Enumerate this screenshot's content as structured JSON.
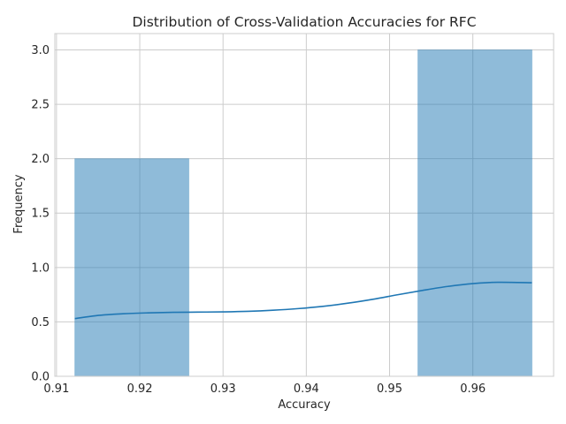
{
  "chart_data": {
    "type": "bar",
    "title": "Distribution of Cross-Validation Accuracies for RFC",
    "xlabel": "Accuracy",
    "ylabel": "Frequency",
    "xlim": [
      0.9098,
      0.9697
    ],
    "ylim": [
      0,
      3.15
    ],
    "xticks": [
      0.91,
      0.92,
      0.93,
      0.94,
      0.95,
      0.96
    ],
    "xtick_labels": [
      "0.91",
      "0.92",
      "0.93",
      "0.94",
      "0.95",
      "0.96"
    ],
    "yticks": [
      0,
      0.5,
      1.0,
      1.5,
      2.0,
      2.5,
      3.0
    ],
    "ytick_labels": [
      "0.0",
      "0.5",
      "1.0",
      "1.5",
      "2.0",
      "2.5",
      "3.0"
    ],
    "grid": true,
    "bins": [
      {
        "x0": 0.9122,
        "x1": 0.9259,
        "count": 2
      },
      {
        "x0": 0.9259,
        "x1": 0.9396,
        "count": 0
      },
      {
        "x0": 0.9396,
        "x1": 0.9534,
        "count": 0
      },
      {
        "x0": 0.9534,
        "x1": 0.9671,
        "count": 3
      }
    ],
    "kde": {
      "x": [
        0.9122,
        0.915,
        0.918,
        0.921,
        0.924,
        0.927,
        0.93,
        0.933,
        0.936,
        0.939,
        0.942,
        0.945,
        0.948,
        0.951,
        0.954,
        0.957,
        0.96,
        0.963,
        0.9671
      ],
      "y": [
        0.53,
        0.56,
        0.575,
        0.583,
        0.588,
        0.59,
        0.592,
        0.597,
        0.607,
        0.622,
        0.643,
        0.672,
        0.708,
        0.75,
        0.79,
        0.826,
        0.852,
        0.864,
        0.86
      ]
    },
    "colors": {
      "bar_fill": "#1f77b4",
      "bar_opacity": 0.5,
      "kde_line": "#1f77b4",
      "grid": "#cccccc",
      "frame": "#cccccc",
      "text": "#262626"
    }
  }
}
